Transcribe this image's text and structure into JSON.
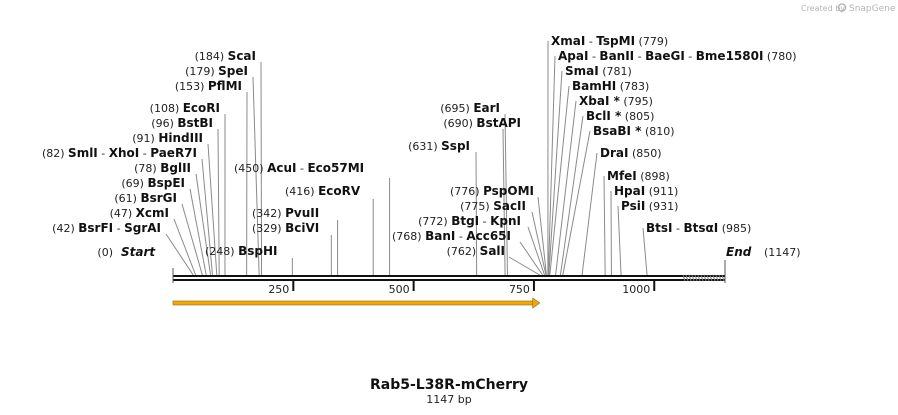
{
  "credit": {
    "prefix": "Created by",
    "brand": "SnapGene"
  },
  "sequence": {
    "name": "Rab5-L38R-mCherry",
    "length_label": "1147 bp",
    "length": 1147
  },
  "ends": {
    "start": {
      "name": "Start",
      "pos_label": "(0)",
      "bp": 0
    },
    "end": {
      "name": "End",
      "pos_label": "(1147)",
      "bp": 1147
    }
  },
  "ticks": [
    {
      "bp": 250,
      "label": "250"
    },
    {
      "bp": 500,
      "label": "500"
    },
    {
      "bp": 750,
      "label": "750"
    },
    {
      "bp": 1000,
      "label": "1000"
    }
  ],
  "feature": {
    "name": "orf-arrow",
    "start": 0,
    "end": 762
  },
  "colors": {
    "arrow": "#f2a900",
    "arrow_dark": "#8a6a1a",
    "backbone": "#111111",
    "leader": "#8a8a8a"
  },
  "sites_left": [
    {
      "pos_label": "(184)",
      "names": [
        "ScaI"
      ],
      "bp": 184
    },
    {
      "pos_label": "(179)",
      "names": [
        "SpeI"
      ],
      "bp": 179
    },
    {
      "pos_label": "(153)",
      "names": [
        "PflMI"
      ],
      "bp": 153
    },
    {
      "pos_label": "(108)",
      "names": [
        "EcoRI"
      ],
      "bp": 108
    },
    {
      "pos_label": "(96)",
      "names": [
        "BstBI"
      ],
      "bp": 96
    },
    {
      "pos_label": "(91)",
      "names": [
        "HindIII"
      ],
      "bp": 91
    },
    {
      "pos_label": "(82)",
      "names": [
        "SmlI",
        "XhoI",
        "PaeR7I"
      ],
      "bp": 82
    },
    {
      "pos_label": "(78)",
      "names": [
        "BglII"
      ],
      "bp": 78
    },
    {
      "pos_label": "(69)",
      "names": [
        "BspEI"
      ],
      "bp": 69
    },
    {
      "pos_label": "(61)",
      "names": [
        "BsrGI"
      ],
      "bp": 61
    },
    {
      "pos_label": "(47)",
      "names": [
        "XcmI"
      ],
      "bp": 47
    },
    {
      "pos_label": "(42)",
      "names": [
        "BsrFI",
        "SgrAI"
      ],
      "bp": 42
    }
  ],
  "sites_mid": [
    {
      "pos_label": "(450)",
      "names": [
        "AcuI",
        "Eco57MI"
      ],
      "bp": 450
    },
    {
      "pos_label": "(416)",
      "names": [
        "EcoRV"
      ],
      "bp": 416
    },
    {
      "pos_label": "(342)",
      "names": [
        "PvuII"
      ],
      "bp": 342
    },
    {
      "pos_label": "(329)",
      "names": [
        "BciVI"
      ],
      "bp": 329
    },
    {
      "pos_label": "(248)",
      "names": [
        "BspHI"
      ],
      "bp": 248
    }
  ],
  "sites_center": [
    {
      "pos_label": "(695)",
      "names": [
        "EarI"
      ],
      "bp": 695
    },
    {
      "pos_label": "(690)",
      "names": [
        "BstAPI"
      ],
      "bp": 690
    },
    {
      "pos_label": "(631)",
      "names": [
        "SspI"
      ],
      "bp": 631
    },
    {
      "pos_label": "(776)",
      "names": [
        "PspOMI"
      ],
      "bp": 776
    },
    {
      "pos_label": "(775)",
      "names": [
        "SacII"
      ],
      "bp": 775
    },
    {
      "pos_label": "(772)",
      "names": [
        "BtgI",
        "KpnI"
      ],
      "bp": 772
    },
    {
      "pos_label": "(768)",
      "names": [
        "BanI",
        "Acc65I"
      ],
      "bp": 768
    },
    {
      "pos_label": "(762)",
      "names": [
        "SalI"
      ],
      "bp": 762
    }
  ],
  "sites_right": [
    {
      "pos_label": "(779)",
      "names": [
        "XmaI",
        "TspMI"
      ],
      "bp": 779
    },
    {
      "pos_label": "(780)",
      "names": [
        "ApaI",
        "BanII",
        "BaeGI",
        "Bme1580I"
      ],
      "bp": 780
    },
    {
      "pos_label": "(781)",
      "names": [
        "SmaI"
      ],
      "bp": 781
    },
    {
      "pos_label": "(783)",
      "names": [
        "BamHI"
      ],
      "bp": 783
    },
    {
      "pos_label": "(795)",
      "names": [
        "XbaI *"
      ],
      "bp": 795
    },
    {
      "pos_label": "(805)",
      "names": [
        "BclI *"
      ],
      "bp": 805
    },
    {
      "pos_label": "(810)",
      "names": [
        "BsaBI *"
      ],
      "bp": 810
    },
    {
      "pos_label": "(850)",
      "names": [
        "DraI"
      ],
      "bp": 850
    },
    {
      "pos_label": "(898)",
      "names": [
        "MfeI"
      ],
      "bp": 898
    },
    {
      "pos_label": "(911)",
      "names": [
        "HpaI"
      ],
      "bp": 911
    },
    {
      "pos_label": "(931)",
      "names": [
        "PsiI"
      ],
      "bp": 931
    },
    {
      "pos_label": "(985)",
      "names": [
        "BtsI",
        "BtsαI"
      ],
      "bp": 985
    }
  ]
}
